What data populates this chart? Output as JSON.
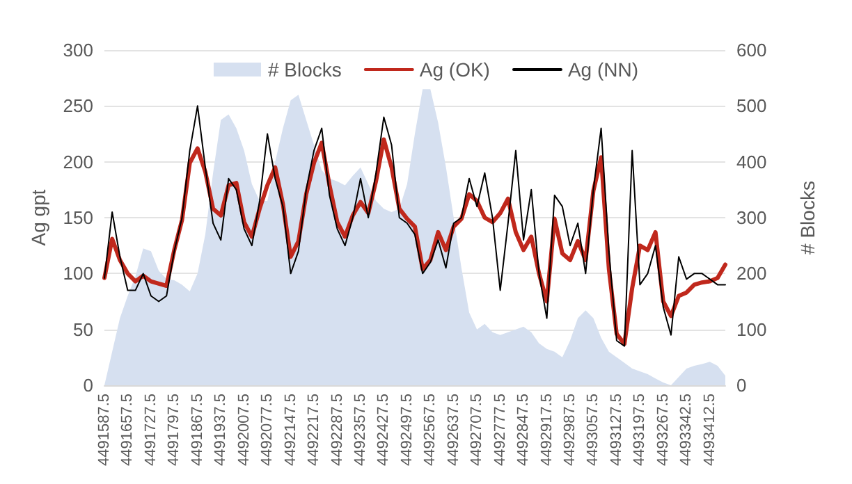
{
  "chart_data": {
    "type": "line",
    "ylabel": "Ag gpt",
    "y2label": "# Blocks",
    "categories": [
      "4491587.5",
      null,
      null,
      "4491657.5",
      null,
      null,
      "4491727.5",
      null,
      null,
      "4491797.5",
      null,
      null,
      "4491867.5",
      null,
      null,
      "4491937.5",
      null,
      null,
      "4492007.5",
      null,
      null,
      "4492077.5",
      null,
      null,
      "4492147.5",
      null,
      null,
      "4492217.5",
      null,
      null,
      "4492287.5",
      null,
      null,
      "4492357.5",
      null,
      null,
      "4492427.5",
      null,
      null,
      "4492497.5",
      null,
      null,
      "4492567.5",
      null,
      null,
      "4492637.5",
      null,
      null,
      "4492707.5",
      null,
      null,
      "4492777.5",
      null,
      null,
      "4492847.5",
      null,
      null,
      "4492917.5",
      null,
      null,
      "4492987.5",
      null,
      null,
      "4493057.5",
      null,
      null,
      "4493127.5",
      null,
      null,
      "4493197.5",
      null,
      null,
      "4493267.5",
      null,
      null,
      "4493342.5",
      null,
      null,
      "4493412.5",
      null,
      null
    ],
    "series": [
      {
        "name": "# Blocks",
        "type": "area",
        "axis": "y2",
        "color": "#d6e0f0",
        "values": [
          0,
          60,
          120,
          160,
          195,
          245,
          240,
          205,
          190,
          188,
          180,
          168,
          200,
          270,
          380,
          475,
          485,
          460,
          420,
          360,
          330,
          330,
          400,
          460,
          510,
          520,
          475,
          430,
          385,
          370,
          365,
          358,
          375,
          390,
          360,
          330,
          316,
          310,
          316,
          360,
          450,
          530,
          530,
          470,
          391,
          300,
          210,
          130,
          100,
          110,
          95,
          90,
          95,
          100,
          105,
          95,
          75,
          65,
          60,
          50,
          80,
          120,
          134,
          120,
          85,
          60,
          50,
          40,
          30,
          25,
          20,
          12,
          5,
          0,
          15,
          30,
          35,
          38,
          42,
          35,
          17
        ]
      },
      {
        "name": "Ag (OK)",
        "color": "#c0281c",
        "values": [
          96,
          131,
          112,
          100,
          93,
          98,
          93,
          91,
          89,
          121,
          148,
          199,
          212,
          191,
          158,
          152,
          179,
          181,
          146,
          133,
          158,
          179,
          195,
          162,
          115,
          129,
          171,
          199,
          217,
          179,
          146,
          133,
          152,
          164,
          154,
          183,
          220,
          195,
          158,
          149,
          142,
          104,
          112,
          137,
          121,
          142,
          149,
          171,
          165,
          150,
          146,
          154,
          167,
          137,
          121,
          133,
          100,
          75,
          149,
          118,
          112,
          129,
          112,
          174,
          204,
          104,
          46,
          37,
          87,
          125,
          121,
          137,
          75,
          62,
          80,
          83,
          90,
          92,
          93,
          96,
          108
        ]
      },
      {
        "name": "Ag (NN)",
        "color": "#000000",
        "values": [
          96,
          155,
          115,
          85,
          85,
          100,
          80,
          75,
          80,
          120,
          150,
          210,
          250,
          195,
          145,
          130,
          185,
          175,
          140,
          125,
          165,
          225,
          185,
          160,
          100,
          120,
          175,
          210,
          230,
          170,
          140,
          125,
          150,
          185,
          150,
          190,
          240,
          215,
          150,
          145,
          135,
          100,
          110,
          130,
          105,
          145,
          150,
          185,
          160,
          190,
          150,
          85,
          145,
          210,
          130,
          175,
          100,
          60,
          170,
          160,
          125,
          145,
          100,
          175,
          230,
          120,
          40,
          35,
          210,
          90,
          100,
          125,
          70,
          45,
          115,
          95,
          100,
          100,
          95,
          90,
          90
        ]
      }
    ],
    "ylim": [
      0,
      300
    ],
    "yticks": [
      0,
      50,
      100,
      150,
      200,
      250,
      300
    ],
    "y2lim": [
      0,
      600
    ],
    "y2ticks": [
      0,
      100,
      200,
      300,
      400,
      500,
      600
    ],
    "grid": "y",
    "legend": "top",
    "marker": "none",
    "line_style": "solid"
  }
}
